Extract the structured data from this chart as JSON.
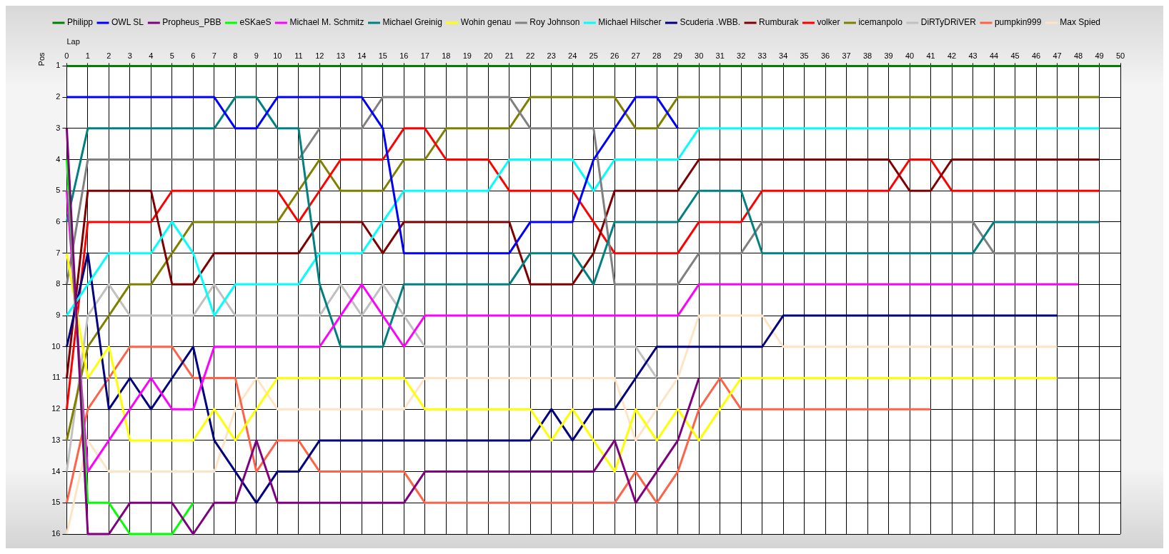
{
  "chart_data": {
    "type": "line",
    "xlabel": "Lap",
    "ylabel": "Pos",
    "x": [
      0,
      1,
      2,
      3,
      4,
      5,
      6,
      7,
      8,
      9,
      10,
      11,
      12,
      13,
      14,
      15,
      16,
      17,
      18,
      19,
      20,
      21,
      22,
      23,
      24,
      25,
      26,
      27,
      28,
      29,
      30,
      31,
      32,
      33,
      34,
      35,
      36,
      37,
      38,
      39,
      40,
      41,
      42,
      43,
      44,
      45,
      46,
      47,
      48,
      49,
      50
    ],
    "xlim": [
      0,
      50
    ],
    "xticks": [
      0,
      1,
      2,
      3,
      4,
      5,
      6,
      7,
      8,
      9,
      10,
      11,
      12,
      13,
      14,
      15,
      16,
      17,
      18,
      19,
      20,
      21,
      22,
      23,
      24,
      25,
      26,
      27,
      28,
      29,
      30,
      31,
      32,
      33,
      34,
      35,
      36,
      37,
      38,
      39,
      40,
      41,
      42,
      43,
      44,
      45,
      46,
      47,
      48,
      49,
      50
    ],
    "ylim": [
      16,
      1
    ],
    "yticks": [
      1,
      2,
      3,
      4,
      5,
      6,
      7,
      8,
      9,
      10,
      11,
      12,
      13,
      14,
      15,
      16
    ],
    "grid": true,
    "legend": "top",
    "marker": "none",
    "line_style": "solid",
    "series": [
      {
        "name": "Philipp",
        "color": "#008000",
        "values": [
          1,
          1,
          1,
          1,
          1,
          1,
          1,
          1,
          1,
          1,
          1,
          1,
          1,
          1,
          1,
          1,
          1,
          1,
          1,
          1,
          1,
          1,
          1,
          1,
          1,
          1,
          1,
          1,
          1,
          1,
          1,
          1,
          1,
          1,
          1,
          1,
          1,
          1,
          1,
          1,
          1,
          1,
          1,
          1,
          1,
          1,
          1,
          1,
          1,
          1,
          1
        ]
      },
      {
        "name": "OWL SL",
        "color": "#0000ff",
        "values": [
          2,
          2,
          2,
          2,
          2,
          2,
          2,
          2,
          3,
          3,
          2,
          2,
          2,
          2,
          2,
          3,
          7,
          7,
          7,
          7,
          7,
          7,
          6,
          6,
          6,
          4,
          3,
          2,
          2,
          3,
          null,
          null,
          null,
          null,
          null,
          null,
          null,
          null,
          null,
          null,
          null,
          null,
          null,
          null,
          null,
          null,
          null,
          null,
          null,
          null,
          null
        ]
      },
      {
        "name": "Propheus_PBB",
        "color": "#800080",
        "values": [
          3,
          16,
          16,
          15,
          15,
          15,
          16,
          15,
          15,
          13,
          15,
          15,
          15,
          15,
          15,
          15,
          15,
          14,
          14,
          14,
          14,
          14,
          14,
          14,
          14,
          14,
          13,
          15,
          14,
          13,
          11,
          null,
          null,
          null,
          null,
          null,
          null,
          null,
          null,
          null,
          null,
          null,
          null,
          null,
          null,
          null,
          null,
          null,
          null,
          null,
          null
        ]
      },
      {
        "name": "eSKaeS",
        "color": "#00ff00",
        "values": [
          4,
          15,
          15,
          16,
          16,
          16,
          15,
          null,
          null,
          null,
          null,
          null,
          null,
          null,
          null,
          null,
          null,
          null,
          null,
          null,
          null,
          null,
          null,
          null,
          null,
          null,
          null,
          null,
          null,
          null,
          null,
          null,
          null,
          null,
          null,
          null,
          null,
          null,
          null,
          null,
          null,
          null,
          null,
          null,
          null,
          null,
          null,
          null,
          null,
          null,
          null
        ]
      },
      {
        "name": "Michael M. Schmitz",
        "color": "#ff00ff",
        "values": [
          5,
          14,
          13,
          12,
          11,
          12,
          12,
          10,
          10,
          10,
          10,
          10,
          10,
          9,
          8,
          9,
          10,
          9,
          9,
          9,
          9,
          9,
          9,
          9,
          9,
          9,
          9,
          9,
          9,
          9,
          8,
          8,
          8,
          8,
          8,
          8,
          8,
          8,
          8,
          8,
          8,
          8,
          8,
          8,
          8,
          8,
          8,
          8,
          8,
          null,
          null
        ]
      },
      {
        "name": "Michael Greinig",
        "color": "#008080",
        "values": [
          6,
          3,
          3,
          3,
          3,
          3,
          3,
          3,
          2,
          2,
          3,
          3,
          8,
          10,
          10,
          10,
          8,
          8,
          8,
          8,
          8,
          8,
          7,
          7,
          7,
          8,
          6,
          6,
          6,
          6,
          5,
          5,
          5,
          7,
          7,
          7,
          7,
          7,
          7,
          7,
          7,
          7,
          7,
          7,
          6,
          6,
          6,
          6,
          6,
          6,
          null
        ]
      },
      {
        "name": "Wohin genau",
        "color": "#ffff00",
        "values": [
          7,
          11,
          10,
          13,
          13,
          13,
          13,
          12,
          13,
          12,
          11,
          11,
          11,
          11,
          11,
          11,
          11,
          12,
          12,
          12,
          12,
          12,
          12,
          13,
          12,
          13,
          14,
          12,
          13,
          12,
          13,
          12,
          11,
          11,
          11,
          11,
          11,
          11,
          11,
          11,
          11,
          11,
          11,
          11,
          11,
          11,
          11,
          11,
          null,
          null,
          null
        ]
      },
      {
        "name": "Roy Johnson",
        "color": "#808080",
        "values": [
          8,
          4,
          4,
          4,
          4,
          4,
          4,
          4,
          4,
          4,
          4,
          4,
          3,
          3,
          3,
          2,
          2,
          2,
          2,
          2,
          2,
          2,
          3,
          3,
          3,
          3,
          8,
          8,
          8,
          8,
          7,
          7,
          7,
          6,
          6,
          6,
          6,
          6,
          6,
          6,
          6,
          6,
          6,
          6,
          7,
          7,
          7,
          7,
          7,
          7,
          null
        ]
      },
      {
        "name": "Michael Hilscher",
        "color": "#00ffff",
        "values": [
          9,
          8,
          7,
          7,
          7,
          6,
          7,
          9,
          8,
          8,
          8,
          8,
          7,
          7,
          7,
          6,
          5,
          5,
          5,
          5,
          5,
          4,
          4,
          4,
          4,
          5,
          4,
          4,
          4,
          4,
          3,
          3,
          3,
          3,
          3,
          3,
          3,
          3,
          3,
          3,
          3,
          3,
          3,
          3,
          3,
          3,
          3,
          3,
          3,
          3,
          null
        ]
      },
      {
        "name": "Scuderia .WBB.",
        "color": "#000080",
        "values": [
          10,
          7,
          12,
          11,
          12,
          11,
          10,
          13,
          14,
          15,
          14,
          14,
          13,
          13,
          13,
          13,
          13,
          13,
          13,
          13,
          13,
          13,
          13,
          12,
          13,
          12,
          12,
          11,
          10,
          10,
          10,
          10,
          10,
          10,
          9,
          9,
          9,
          9,
          9,
          9,
          9,
          9,
          9,
          9,
          9,
          9,
          9,
          9,
          null,
          null,
          null
        ]
      },
      {
        "name": "Rumburak",
        "color": "#800000",
        "values": [
          11,
          5,
          5,
          5,
          5,
          8,
          8,
          7,
          7,
          7,
          7,
          7,
          6,
          6,
          6,
          7,
          6,
          6,
          6,
          6,
          6,
          6,
          8,
          8,
          8,
          7,
          5,
          5,
          5,
          5,
          4,
          4,
          4,
          4,
          4,
          4,
          4,
          4,
          4,
          4,
          5,
          5,
          4,
          4,
          4,
          4,
          4,
          4,
          4,
          4,
          null
        ]
      },
      {
        "name": "volker",
        "color": "#ff0000",
        "values": [
          12,
          6,
          6,
          6,
          6,
          5,
          5,
          5,
          5,
          5,
          5,
          6,
          5,
          4,
          4,
          4,
          3,
          3,
          4,
          4,
          4,
          5,
          5,
          5,
          5,
          6,
          7,
          7,
          7,
          7,
          6,
          6,
          6,
          5,
          5,
          5,
          5,
          5,
          5,
          5,
          4,
          4,
          5,
          5,
          5,
          5,
          5,
          5,
          5,
          5,
          null
        ]
      },
      {
        "name": "icemanpolo",
        "color": "#808000",
        "values": [
          13,
          10,
          9,
          8,
          8,
          7,
          6,
          6,
          6,
          6,
          6,
          5,
          4,
          5,
          5,
          5,
          4,
          4,
          3,
          3,
          3,
          3,
          2,
          2,
          2,
          2,
          2,
          3,
          3,
          2,
          2,
          2,
          2,
          2,
          2,
          2,
          2,
          2,
          2,
          2,
          2,
          2,
          2,
          2,
          2,
          2,
          2,
          2,
          2,
          2,
          null
        ]
      },
      {
        "name": "DiRTyDRiVER",
        "color": "#c0c0c0",
        "values": [
          14,
          9,
          8,
          9,
          9,
          9,
          9,
          8,
          9,
          9,
          9,
          9,
          9,
          8,
          9,
          8,
          9,
          10,
          10,
          10,
          10,
          10,
          10,
          10,
          10,
          10,
          10,
          10,
          11,
          null,
          null,
          null,
          null,
          null,
          null,
          null,
          null,
          null,
          null,
          null,
          null,
          null,
          null,
          null,
          null,
          null,
          null,
          null,
          null,
          null,
          null
        ]
      },
      {
        "name": "pumpkin999",
        "color": "#ff6347",
        "values": [
          15,
          12,
          11,
          10,
          10,
          10,
          11,
          11,
          11,
          14,
          13,
          13,
          14,
          14,
          14,
          14,
          14,
          15,
          15,
          15,
          15,
          15,
          15,
          15,
          15,
          15,
          15,
          14,
          15,
          14,
          12,
          11,
          12,
          12,
          12,
          12,
          12,
          12,
          12,
          12,
          12,
          12,
          null,
          null,
          null,
          null,
          null,
          null,
          null,
          null,
          null
        ]
      },
      {
        "name": "Max Spied",
        "color": "#ffe4c4",
        "values": [
          16,
          13,
          14,
          14,
          14,
          14,
          14,
          14,
          12,
          11,
          12,
          12,
          12,
          12,
          12,
          12,
          12,
          11,
          11,
          11,
          11,
          11,
          11,
          11,
          11,
          11,
          11,
          13,
          12,
          11,
          9,
          9,
          9,
          9,
          10,
          10,
          10,
          10,
          10,
          10,
          10,
          10,
          10,
          10,
          10,
          10,
          10,
          10,
          null,
          null,
          null
        ]
      }
    ]
  }
}
